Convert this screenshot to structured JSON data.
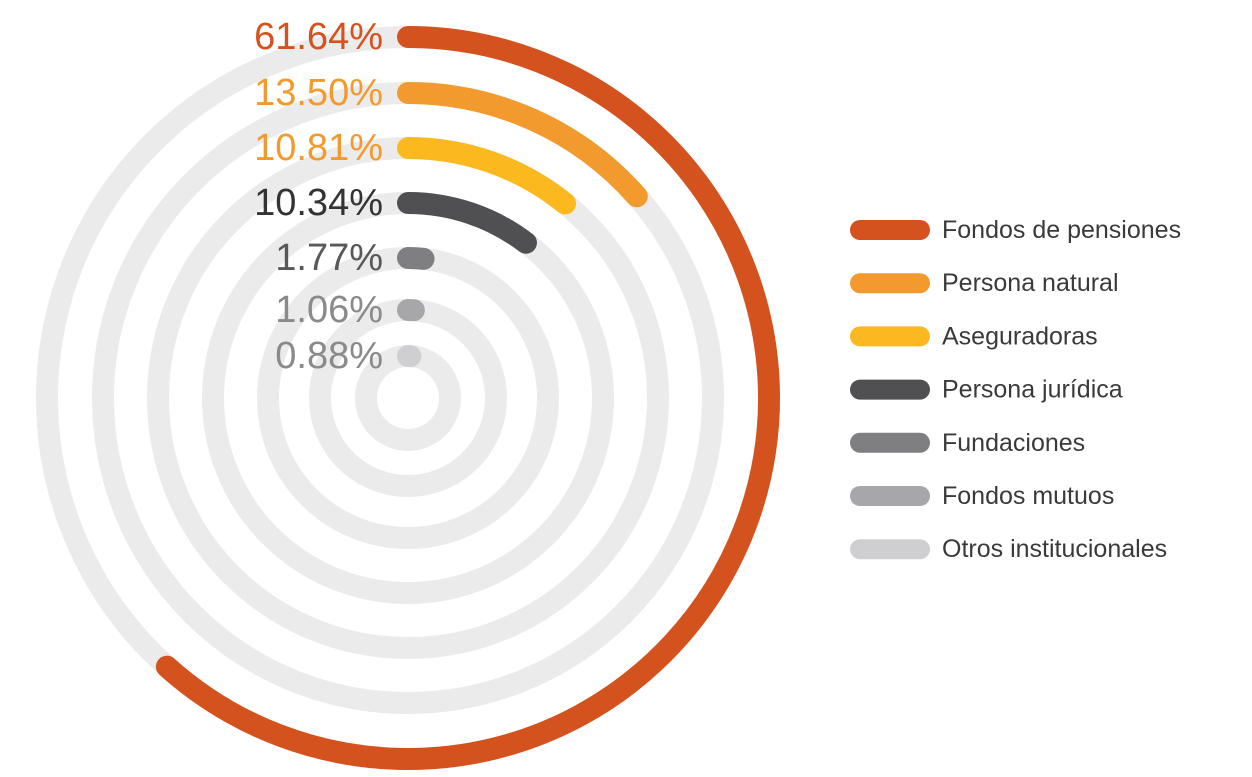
{
  "chart_data": {
    "type": "radial_bar",
    "categories": [
      "Fondos de pensiones",
      "Persona natural",
      "Aseguradoras",
      "Persona jurídica",
      "Fundaciones",
      "Fondos mutuos",
      "Otros institucionales"
    ],
    "values": [
      61.64,
      13.5,
      10.81,
      10.34,
      1.77,
      1.06,
      0.88
    ],
    "value_labels": [
      "61.64%",
      "13.50%",
      "10.81%",
      "10.34%",
      "1.77%",
      "1.06%",
      "0.88%"
    ],
    "colors": [
      "#d4521e",
      "#f29a2e",
      "#fbb91f",
      "#505053",
      "#7f7f82",
      "#a7a7aa",
      "#cfcfd1"
    ],
    "label_colors": [
      "#d4521e",
      "#f29a2e",
      "#f29a2e",
      "#333335",
      "#58585b",
      "#8a8a8d",
      "#8a8a8d"
    ],
    "legend": "right"
  }
}
